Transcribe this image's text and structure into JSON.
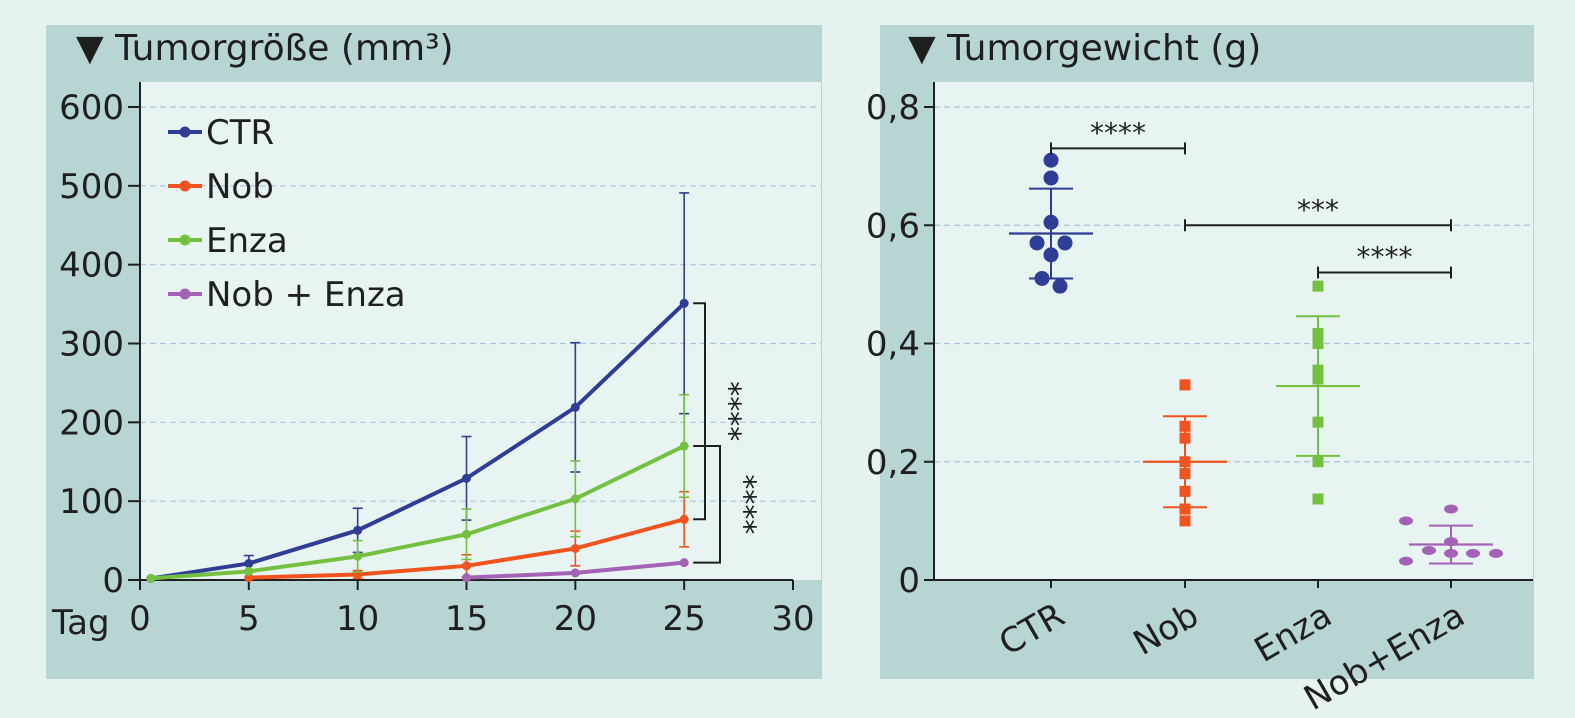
{
  "chart_data": [
    {
      "type": "line",
      "title": "Tumorgröße (mm³)",
      "title_marker": "▼",
      "xlabel": "Tag",
      "ylabel": "",
      "x": [
        0,
        5,
        10,
        15,
        20,
        25,
        30
      ],
      "xlim": [
        0,
        30
      ],
      "ylim": [
        0,
        600
      ],
      "xticks": [
        "0",
        "5",
        "10",
        "15",
        "20",
        "25",
        "30"
      ],
      "yticks": [
        "0",
        "100",
        "200",
        "300",
        "400",
        "500",
        "600"
      ],
      "grid": "horizontal dashed",
      "legend": "top-left",
      "series": [
        {
          "name": "CTR",
          "color": "#2e3d96",
          "points": [
            [
              0.5,
              2
            ],
            [
              5,
              21
            ],
            [
              10,
              63
            ],
            [
              15,
              129
            ],
            [
              20,
              219
            ],
            [
              25,
              351
            ]
          ],
          "err": [
            0,
            10,
            28,
            53,
            82,
            140
          ]
        },
        {
          "name": "Nob",
          "color": "#f0531e",
          "points": [
            [
              5,
              3
            ],
            [
              10,
              7
            ],
            [
              15,
              18
            ],
            [
              20,
              40
            ],
            [
              25,
              77
            ]
          ],
          "err": [
            0,
            5,
            14,
            22,
            35
          ]
        },
        {
          "name": "Enza",
          "color": "#74c142",
          "points": [
            [
              0.5,
              2
            ],
            [
              5,
              11
            ],
            [
              10,
              30
            ],
            [
              15,
              58
            ],
            [
              20,
              103
            ],
            [
              25,
              170
            ]
          ],
          "err": [
            0,
            0,
            20,
            32,
            48,
            65
          ]
        },
        {
          "name": "Nob + Enza",
          "color": "#a462b6",
          "points": [
            [
              15,
              3
            ],
            [
              20,
              9
            ],
            [
              25,
              22
            ]
          ],
          "err": [
            0,
            0,
            0
          ]
        }
      ],
      "annotations": [
        {
          "text": "****",
          "from": "CTR",
          "to": "Nob"
        },
        {
          "text": "****",
          "from": "Enza",
          "to": "Nob + Enza"
        }
      ]
    },
    {
      "type": "scatter",
      "title": "Tumorgewicht (g)",
      "title_marker": "▼",
      "xlabel": "",
      "ylabel": "",
      "categories": [
        "CTR",
        "Nob",
        "Enza",
        "Nob+Enza"
      ],
      "ylim": [
        0,
        0.8
      ],
      "yticks": [
        "0",
        "0,2",
        "0,4",
        "0,6",
        "0,8"
      ],
      "grid": "horizontal dashed",
      "groups": [
        {
          "name": "CTR",
          "color": "#2e3d96",
          "marker": "circle",
          "values": [
            0.71,
            0.68,
            0.605,
            0.57,
            0.57,
            0.55,
            0.51,
            0.497
          ],
          "mean": 0.586,
          "sd": 0.076
        },
        {
          "name": "Nob",
          "color": "#f0531e",
          "marker": "square",
          "values": [
            0.33,
            0.26,
            0.24,
            0.2,
            0.18,
            0.15,
            0.12,
            0.1
          ],
          "mean": 0.2,
          "sd": 0.077
        },
        {
          "name": "Enza",
          "color": "#74c142",
          "marker": "square",
          "values": [
            0.497,
            0.417,
            0.4,
            0.355,
            0.34,
            0.267,
            0.2,
            0.137
          ],
          "mean": 0.328,
          "sd": 0.118
        },
        {
          "name": "Nob+Enza",
          "color": "#a462b6",
          "marker": "oval",
          "values": [
            0.12,
            0.1,
            0.065,
            0.05,
            0.045,
            0.045,
            0.045,
            0.032
          ],
          "mean": 0.06,
          "sd": 0.032
        }
      ],
      "brackets": [
        {
          "from": "CTR",
          "to": "Nob",
          "text": "****",
          "level": 0.73
        },
        {
          "from": "Nob",
          "to": "Nob+Enza",
          "text": "***",
          "level": 0.6
        },
        {
          "from": "Enza",
          "to": "Nob+Enza",
          "text": "****",
          "level": 0.52
        }
      ]
    }
  ]
}
